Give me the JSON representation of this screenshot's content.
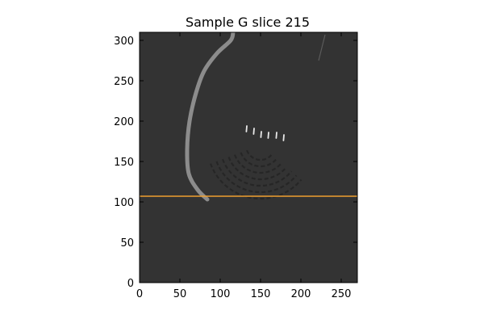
{
  "chart_data": {
    "type": "image",
    "title": "Sample G slice 215",
    "xlim": [
      0,
      270
    ],
    "ylim": [
      0,
      310
    ],
    "xticks": [
      0,
      50,
      100,
      150,
      200,
      250
    ],
    "yticks": [
      0,
      50,
      100,
      150,
      200,
      250,
      300
    ],
    "grid": false,
    "legend": "none",
    "colors": {
      "background": "#333333",
      "structure": "#8c8c8c",
      "bright_marks": "#e8e8e8",
      "dark_ring": "#242424",
      "hline": "#f0a030",
      "axes": "#000000"
    },
    "hline": {
      "y": 107
    },
    "arc_structure": {
      "points": [
        [
          116,
          310
        ],
        [
          113,
          300
        ],
        [
          96,
          284
        ],
        [
          80,
          262
        ],
        [
          70,
          235
        ],
        [
          62,
          200
        ],
        [
          59,
          165
        ],
        [
          61,
          135
        ],
        [
          72,
          115
        ],
        [
          84,
          103
        ]
      ]
    },
    "faint_streak": {
      "points": [
        [
          230,
          307
        ],
        [
          222,
          275
        ]
      ]
    },
    "bright_marks": [
      {
        "x": 133,
        "y": 191
      },
      {
        "x": 142,
        "y": 188
      },
      {
        "x": 151,
        "y": 184
      },
      {
        "x": 160,
        "y": 183
      },
      {
        "x": 170,
        "y": 183
      },
      {
        "x": 179,
        "y": 180
      }
    ],
    "dark_ring_pattern": {
      "center": [
        150,
        170
      ],
      "radii": [
        18,
        26,
        34,
        42,
        50,
        58,
        66
      ],
      "angle_range_deg": [
        200,
        320
      ]
    }
  }
}
